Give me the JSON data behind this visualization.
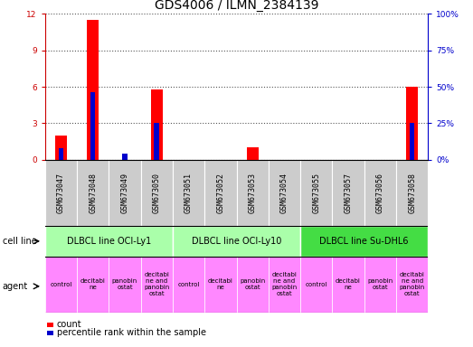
{
  "title": "GDS4006 / ILMN_2384139",
  "gsm_labels": [
    "GSM673047",
    "GSM673048",
    "GSM673049",
    "GSM673050",
    "GSM673051",
    "GSM673052",
    "GSM673053",
    "GSM673054",
    "GSM673055",
    "GSM673057",
    "GSM673056",
    "GSM673058"
  ],
  "count_values": [
    2.0,
    11.5,
    0.0,
    5.8,
    0.0,
    0.0,
    1.0,
    0.0,
    0.0,
    0.0,
    0.0,
    6.0
  ],
  "percentile_values": [
    8.0,
    46.0,
    4.0,
    25.0,
    0.0,
    0.0,
    0.0,
    0.0,
    0.0,
    0.0,
    0.0,
    25.0
  ],
  "ylim_left": [
    0,
    12
  ],
  "ylim_right": [
    0,
    100
  ],
  "yticks_left": [
    0,
    3,
    6,
    9,
    12
  ],
  "yticks_right": [
    0,
    25,
    50,
    75,
    100
  ],
  "ytick_labels_left": [
    "0",
    "3",
    "6",
    "9",
    "12"
  ],
  "ytick_labels_right": [
    "0%",
    "25%",
    "50%",
    "75%",
    "100%"
  ],
  "cell_line_groups": [
    {
      "label": "DLBCL line OCI-Ly1",
      "start": 0,
      "end": 3,
      "color": "#AAFFAA"
    },
    {
      "label": "DLBCL line OCI-Ly10",
      "start": 4,
      "end": 7,
      "color": "#AAFFAA"
    },
    {
      "label": "DLBCL line Su-DHL6",
      "start": 8,
      "end": 11,
      "color": "#44DD44"
    }
  ],
  "agent_labels_text": [
    "control",
    "decitabi\nne",
    "panobin\nostat",
    "decitabi\nne and\npanobin\nostat",
    "control",
    "decitabi\nne",
    "panobin\nostat",
    "decitabi\nne and\npanobin\nostat",
    "control",
    "decitabi\nne",
    "panobin\nostat",
    "decitabi\nne and\npanobin\nostat"
  ],
  "agent_color": "#FF88FF",
  "gsm_bg_color": "#CCCCCC",
  "bar_color_count": "#FF0000",
  "bar_color_percentile": "#0000CC",
  "left_axis_color": "#CC0000",
  "right_axis_color": "#0000CC",
  "grid_color": "#555555",
  "title_fontsize": 10,
  "tick_fontsize": 6.5,
  "label_fontsize": 7,
  "agent_fontsize": 5,
  "gsm_fontsize": 6,
  "bar_width": 0.4,
  "n_bars": 12
}
